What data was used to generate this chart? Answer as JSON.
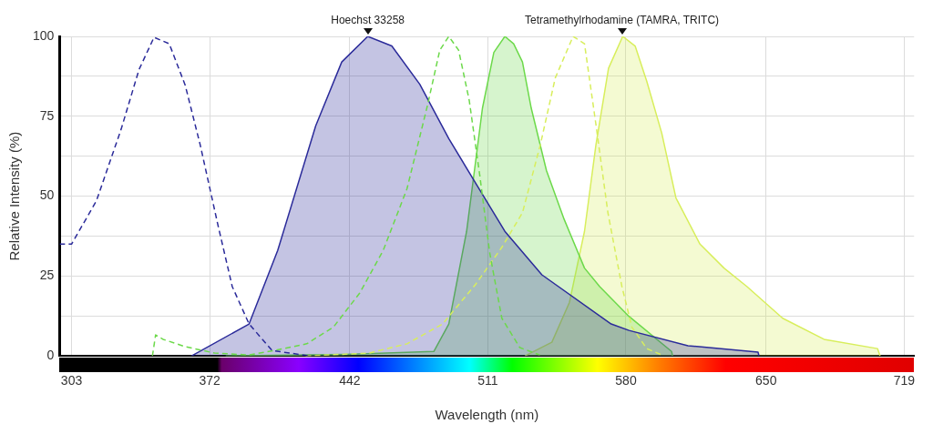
{
  "chart_data": {
    "type": "area",
    "xlabel": "Wavelength (nm)",
    "ylabel": "Relative Intensity (%)",
    "xlim": [
      297,
      724
    ],
    "xticks": [
      303,
      372,
      442,
      511,
      580,
      650,
      719
    ],
    "ylim": [
      0,
      100
    ],
    "yticks": [
      0,
      {
        "value": 12.5,
        "label": null
      },
      25,
      {
        "value": 37.5,
        "label": null
      },
      50,
      {
        "value": 62.5,
        "label": null
      },
      75,
      {
        "value": 87.5,
        "label": null
      },
      100
    ],
    "grid": true,
    "legend": false,
    "marker": "none",
    "annotations": [
      {
        "text": "Hoechst 33258",
        "x": 451,
        "y": 100
      },
      {
        "text": "Tetramethylrhodamine (TAMRA, TRITC)",
        "x": 578,
        "y": 100
      }
    ],
    "series": [
      {
        "type": "line",
        "line_style": "dashed",
        "color": "#2b2b9a",
        "x": [
          297,
          303,
          315.4,
          327.8,
          336.7,
          344.2,
          351.8,
          359.8,
          367.3,
          376.2,
          383.3,
          391.7,
          403.2,
          421.8
        ],
        "values": [
          35,
          35,
          48.5,
          71,
          89.6,
          99.7,
          97.7,
          84.7,
          66,
          40.8,
          21.7,
          10,
          1.7,
          0
        ]
      },
      {
        "type": "line",
        "line_style": "dashed",
        "color": "#6cd94a",
        "x": [
          343.4,
          345,
          348.7,
          359.8,
          374.4,
          391.7,
          404.1,
          420.5,
          433.8,
          447,
          458.7,
          470.6,
          480.8,
          487,
          491.5,
          496.4,
          501.7,
          507,
          512,
          518,
          527,
          537
        ],
        "values": [
          0,
          6.6,
          5.2,
          2.9,
          0.9,
          0.3,
          1.7,
          3.8,
          9,
          19.7,
          33,
          52.3,
          78.3,
          95.7,
          100,
          95.7,
          80,
          56.4,
          32,
          11.8,
          2.6,
          0.3
        ]
      },
      {
        "type": "line",
        "line_style": "dashed",
        "color": "#d8ee5c",
        "x": [
          420,
          451.6,
          470.6,
          488.4,
          505,
          518,
          528.3,
          537.2,
          544.7,
          553.6,
          559.3,
          565,
          571,
          578,
          583,
          590.4,
          598
        ],
        "values": [
          0,
          0.9,
          3.8,
          10,
          22.5,
          34,
          44.8,
          66,
          87,
          100,
          97.7,
          72.5,
          44.8,
          21.7,
          9,
          2.3,
          0.3
        ]
      },
      {
        "line_style": "solid",
        "color": "#2b2b9a",
        "x": [
          363,
          391.7,
          406,
          425,
          438,
          451,
          463,
          477,
          491.5,
          505,
          519.5,
          538,
          572.6,
          581.5,
          611,
          646,
          646.5
        ],
        "values": [
          0,
          10,
          33,
          72,
          92,
          100,
          97,
          85,
          68,
          54,
          39,
          25.4,
          10,
          8,
          3.2,
          1.2,
          0
        ]
      },
      {
        "line_style": "solid",
        "color": "#6cd94a",
        "x": [
          380,
          440,
          484,
          491.5,
          500.4,
          508.3,
          514,
          519.5,
          523.9,
          528.3,
          532.7,
          540.3,
          549.1,
          559.3,
          566.9,
          581.5,
          602.8,
          603.3
        ],
        "values": [
          0,
          0.5,
          1.4,
          10,
          39,
          77.5,
          95,
          100,
          97.7,
          92,
          77.5,
          58,
          42.8,
          27.5,
          21.7,
          12.4,
          1.4,
          0
        ]
      },
      {
        "line_style": "solid",
        "color": "#d8ee5c",
        "x": [
          529.6,
          543,
          551.8,
          559.3,
          565,
          571.3,
          578.4,
          584.6,
          590.4,
          597.9,
          605,
          617,
          629,
          640.5,
          658.3,
          679,
          705.7,
          707
        ],
        "values": [
          0,
          4.3,
          16.8,
          39,
          66,
          90,
          100,
          97,
          86,
          69.7,
          49.4,
          35,
          27.5,
          21.7,
          11.8,
          5.2,
          2.3,
          0
        ]
      }
    ]
  }
}
